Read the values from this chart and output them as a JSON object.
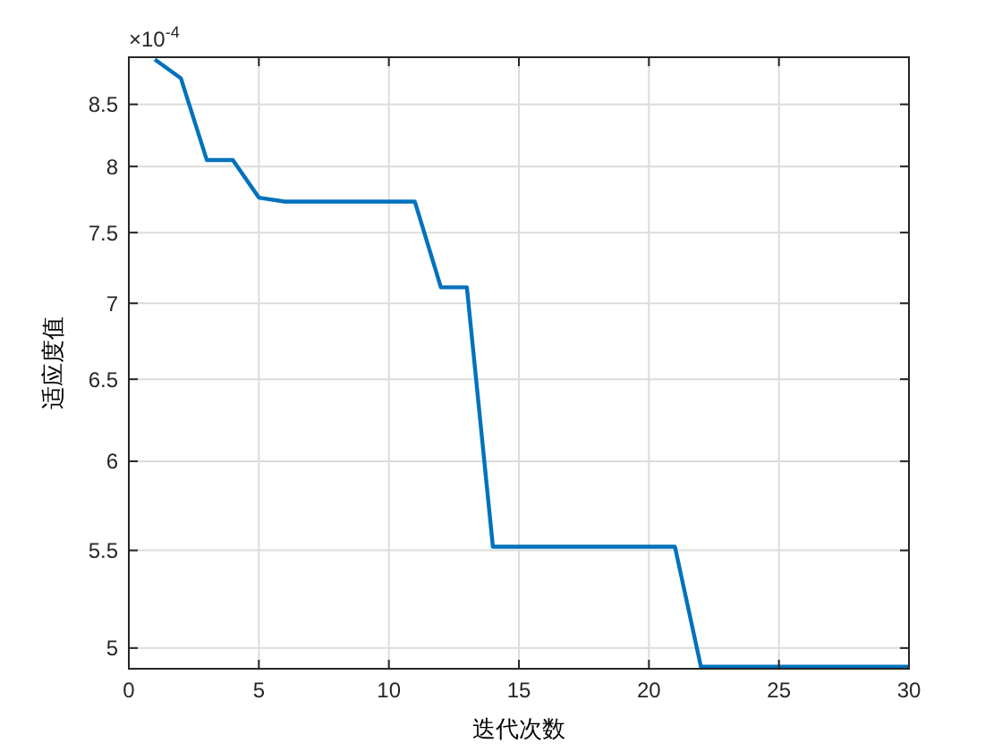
{
  "chart_data": {
    "type": "line",
    "xlabel": "迭代次数",
    "ylabel": "适应度值",
    "annotations": [
      "×10$^{-4}$"
    ],
    "x": [
      1,
      2,
      3,
      4,
      5,
      6,
      7,
      8,
      9,
      10,
      11,
      12,
      13,
      14,
      15,
      16,
      17,
      18,
      19,
      20,
      21,
      22,
      23,
      24,
      25,
      26,
      27,
      28,
      29,
      30
    ],
    "series": [
      {
        "color": "#0072bd",
        "values": [
          8.88,
          8.72,
          8.05,
          8.05,
          7.76,
          7.73,
          7.73,
          7.73,
          7.73,
          7.73,
          7.73,
          7.11,
          7.11,
          5.52,
          5.52,
          5.52,
          5.52,
          5.52,
          5.52,
          5.52,
          5.52,
          4.91,
          4.91,
          4.91,
          4.91,
          4.91,
          4.91,
          4.91,
          4.91,
          4.91
        ]
      }
    ],
    "xlim": [
      0,
      30
    ],
    "xticks": [
      0,
      5,
      10,
      15,
      20,
      25,
      30
    ],
    "ylim": [
      4.9,
      8.9
    ],
    "yticks": [
      5,
      5.5,
      6,
      6.5,
      7,
      7.5,
      8,
      8.5
    ],
    "log": "y",
    "grid": true,
    "marker": "none",
    "line_style": "solid"
  }
}
